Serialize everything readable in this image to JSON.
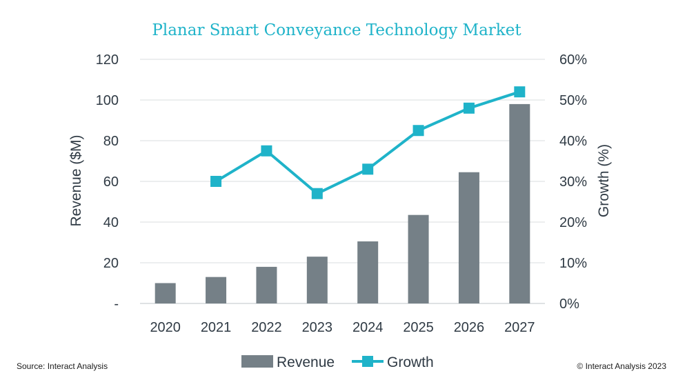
{
  "chart_data": {
    "type": "bar",
    "title": "Planar Smart Conveyance Technology Market",
    "categories": [
      "2020",
      "2021",
      "2022",
      "2023",
      "2024",
      "2025",
      "2026",
      "2027"
    ],
    "series": [
      {
        "name": "Revenue",
        "type": "bar",
        "axis": "left",
        "color": "#758087",
        "values": [
          10,
          13,
          18,
          23,
          30.5,
          43.5,
          64.5,
          98
        ]
      },
      {
        "name": "Growth",
        "type": "line",
        "axis": "right",
        "color": "#1fb3c9",
        "values": [
          null,
          30,
          37.5,
          27,
          33,
          42.5,
          48,
          52
        ]
      }
    ],
    "ylabel": "Revenue ($M)",
    "ylim": [
      0,
      120
    ],
    "yticks": [
      "-",
      "20",
      "40",
      "60",
      "80",
      "100",
      "120"
    ],
    "y2label": "Growth (%)",
    "y2lim": [
      0,
      60
    ],
    "y2ticks": [
      "0%",
      "10%",
      "20%",
      "30%",
      "40%",
      "50%",
      "60%"
    ],
    "grid": true,
    "legend_position": "bottom"
  },
  "footer": {
    "source": "Source: Interact Analysis",
    "copyright": "© Interact Analysis 2023"
  }
}
